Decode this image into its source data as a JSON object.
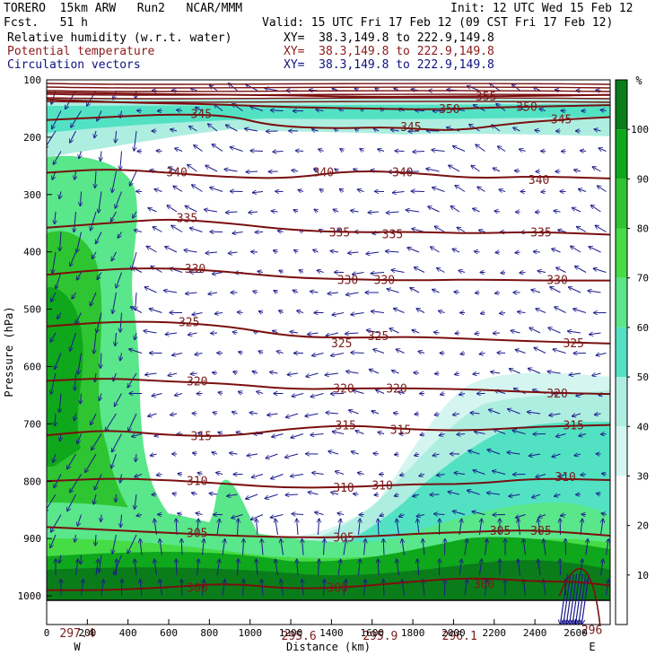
{
  "header": {
    "model": "TORERO  15km ARW   Run2   NCAR/MMM",
    "init": "Init: 12 UTC Wed 15 Feb 12",
    "fcst": "Fcst.   51 h",
    "valid": "Valid: 15 UTC Fri 17 Feb 12 (09 CST Fri 17 Feb 12)",
    "fields": [
      {
        "name": "Relative humidity (w.r.t. water)",
        "xy": "XY=  38.3,149.8 to 222.9,149.8"
      },
      {
        "name": "Potential temperature",
        "xy": "XY=  38.3,149.8 to 222.9,149.8"
      },
      {
        "name": "Circulation vectors",
        "xy": "XY=  38.3,149.8 to 222.9,149.8"
      }
    ]
  },
  "colors": {
    "rh_scale": [
      "#ffffff",
      "#ffffff",
      "#ffffff",
      "#d4f5f0",
      "#aeeee0",
      "#52e2c3",
      "#5ae68a",
      "#46dc46",
      "#2fc431",
      "#0fa71c",
      "#0a7d1a"
    ],
    "theta": "#7a0f0f",
    "vectors": "#1a1a8c"
  },
  "chart_data": {
    "type": "cross-section",
    "title": "Relative humidity (w.r.t. water) / Potential temperature / Circulation vectors",
    "xlabel": "Distance (km)",
    "ylabel": "Pressure (hPa)",
    "xlim": [
      0,
      2770
    ],
    "ylim": [
      1050,
      100
    ],
    "x_ticks": [
      0,
      200,
      400,
      600,
      800,
      1000,
      1200,
      1400,
      1600,
      1800,
      2000,
      2200,
      2400,
      2600
    ],
    "y_ticks": [
      100,
      200,
      300,
      400,
      500,
      600,
      700,
      800,
      900,
      1000
    ],
    "x_ends": [
      "W",
      "E"
    ],
    "colorbar": {
      "unit": "%",
      "ticks": [
        10,
        20,
        30,
        40,
        50,
        60,
        70,
        80,
        90,
        100
      ]
    },
    "theta_labels": [
      {
        "t": "355",
        "x": 2160,
        "p": 130
      },
      {
        "t": "350",
        "x": 1980,
        "p": 152
      },
      {
        "t": "350",
        "x": 2360,
        "p": 148
      },
      {
        "t": "345",
        "x": 760,
        "p": 160
      },
      {
        "t": "345",
        "x": 1790,
        "p": 183
      },
      {
        "t": "345",
        "x": 2530,
        "p": 170
      },
      {
        "t": "340",
        "x": 640,
        "p": 262
      },
      {
        "t": "340",
        "x": 1360,
        "p": 262
      },
      {
        "t": "340",
        "x": 1750,
        "p": 262
      },
      {
        "t": "340",
        "x": 2420,
        "p": 275
      },
      {
        "t": "335",
        "x": 690,
        "p": 342
      },
      {
        "t": "335",
        "x": 1440,
        "p": 367
      },
      {
        "t": "335",
        "x": 1700,
        "p": 370
      },
      {
        "t": "335",
        "x": 2430,
        "p": 367
      },
      {
        "t": "330",
        "x": 730,
        "p": 430
      },
      {
        "t": "330",
        "x": 1480,
        "p": 450
      },
      {
        "t": "330",
        "x": 1660,
        "p": 450
      },
      {
        "t": "330",
        "x": 2510,
        "p": 450
      },
      {
        "t": "325",
        "x": 700,
        "p": 523
      },
      {
        "t": "325",
        "x": 1450,
        "p": 560
      },
      {
        "t": "325",
        "x": 1630,
        "p": 548
      },
      {
        "t": "325",
        "x": 2590,
        "p": 560
      },
      {
        "t": "320",
        "x": 740,
        "p": 627
      },
      {
        "t": "320",
        "x": 1460,
        "p": 639
      },
      {
        "t": "320",
        "x": 1720,
        "p": 639
      },
      {
        "t": "320",
        "x": 2510,
        "p": 648
      },
      {
        "t": "315",
        "x": 760,
        "p": 722
      },
      {
        "t": "315",
        "x": 1470,
        "p": 703
      },
      {
        "t": "315",
        "x": 1740,
        "p": 711
      },
      {
        "t": "315",
        "x": 2590,
        "p": 703
      },
      {
        "t": "310",
        "x": 740,
        "p": 800
      },
      {
        "t": "310",
        "x": 1460,
        "p": 812
      },
      {
        "t": "310",
        "x": 1650,
        "p": 808
      },
      {
        "t": "310",
        "x": 2550,
        "p": 793
      },
      {
        "t": "305",
        "x": 740,
        "p": 891
      },
      {
        "t": "305",
        "x": 1460,
        "p": 899
      },
      {
        "t": "305",
        "x": 2230,
        "p": 887
      },
      {
        "t": "305",
        "x": 2430,
        "p": 887
      },
      {
        "t": "300",
        "x": 740,
        "p": 987
      },
      {
        "t": "300",
        "x": 1430,
        "p": 987
      },
      {
        "t": "300",
        "x": 2150,
        "p": 980
      },
      {
        "t": "297.4",
        "x": 150,
        "p": 1066
      },
      {
        "t": "295.6",
        "x": 1240,
        "p": 1070
      },
      {
        "t": "295.9",
        "x": 1640,
        "p": 1070
      },
      {
        "t": "296.1",
        "x": 2030,
        "p": 1070
      },
      {
        "t": "296",
        "x": 2680,
        "p": 1060
      }
    ],
    "theta_levels": [
      {
        "t": 355,
        "pts": [
          [
            0,
            122
          ],
          [
            400,
            124
          ],
          [
            800,
            126
          ],
          [
            1200,
            127
          ],
          [
            1600,
            130
          ],
          [
            2000,
            129
          ],
          [
            2400,
            128
          ],
          [
            2770,
            126
          ]
        ]
      },
      {
        "t": 350,
        "pts": [
          [
            0,
            134
          ],
          [
            400,
            140
          ],
          [
            800,
            142
          ],
          [
            1200,
            148
          ],
          [
            1600,
            150
          ],
          [
            1900,
            152
          ],
          [
            2200,
            148
          ],
          [
            2500,
            146
          ],
          [
            2770,
            144
          ]
        ]
      },
      {
        "t": 345,
        "pts": [
          [
            0,
            170
          ],
          [
            300,
            165
          ],
          [
            600,
            160
          ],
          [
            900,
            162
          ],
          [
            1100,
            180
          ],
          [
            1400,
            185
          ],
          [
            1700,
            182
          ],
          [
            2000,
            190
          ],
          [
            2300,
            175
          ],
          [
            2600,
            168
          ],
          [
            2770,
            165
          ]
        ]
      },
      {
        "t": 340,
        "pts": [
          [
            0,
            262
          ],
          [
            300,
            255
          ],
          [
            600,
            262
          ],
          [
            900,
            270
          ],
          [
            1200,
            272
          ],
          [
            1500,
            258
          ],
          [
            1800,
            262
          ],
          [
            2100,
            272
          ],
          [
            2400,
            268
          ],
          [
            2770,
            272
          ]
        ]
      },
      {
        "t": 335,
        "pts": [
          [
            0,
            358
          ],
          [
            300,
            350
          ],
          [
            600,
            342
          ],
          [
            900,
            350
          ],
          [
            1200,
            362
          ],
          [
            1500,
            366
          ],
          [
            1800,
            365
          ],
          [
            2100,
            368
          ],
          [
            2400,
            365
          ],
          [
            2770,
            370
          ]
        ]
      },
      {
        "t": 330,
        "pts": [
          [
            0,
            440
          ],
          [
            300,
            430
          ],
          [
            600,
            428
          ],
          [
            900,
            435
          ],
          [
            1200,
            445
          ],
          [
            1500,
            448
          ],
          [
            1800,
            450
          ],
          [
            2100,
            448
          ],
          [
            2400,
            450
          ],
          [
            2770,
            450
          ]
        ]
      },
      {
        "t": 325,
        "pts": [
          [
            0,
            530
          ],
          [
            300,
            522
          ],
          [
            600,
            522
          ],
          [
            900,
            530
          ],
          [
            1200,
            548
          ],
          [
            1500,
            550
          ],
          [
            1800,
            548
          ],
          [
            2100,
            552
          ],
          [
            2400,
            556
          ],
          [
            2770,
            560
          ]
        ]
      },
      {
        "t": 320,
        "pts": [
          [
            0,
            625
          ],
          [
            300,
            620
          ],
          [
            600,
            626
          ],
          [
            900,
            630
          ],
          [
            1200,
            640
          ],
          [
            1500,
            638
          ],
          [
            1800,
            638
          ],
          [
            2100,
            640
          ],
          [
            2400,
            645
          ],
          [
            2770,
            648
          ]
        ]
      },
      {
        "t": 315,
        "pts": [
          [
            0,
            720
          ],
          [
            300,
            710
          ],
          [
            600,
            720
          ],
          [
            900,
            722
          ],
          [
            1200,
            708
          ],
          [
            1500,
            702
          ],
          [
            1800,
            710
          ],
          [
            2100,
            712
          ],
          [
            2400,
            705
          ],
          [
            2770,
            702
          ]
        ]
      },
      {
        "t": 310,
        "pts": [
          [
            0,
            800
          ],
          [
            300,
            795
          ],
          [
            600,
            798
          ],
          [
            900,
            805
          ],
          [
            1200,
            812
          ],
          [
            1500,
            810
          ],
          [
            1800,
            805
          ],
          [
            2100,
            805
          ],
          [
            2400,
            795
          ],
          [
            2770,
            798
          ]
        ]
      },
      {
        "t": 305,
        "pts": [
          [
            0,
            880
          ],
          [
            300,
            885
          ],
          [
            600,
            890
          ],
          [
            900,
            895
          ],
          [
            1200,
            898
          ],
          [
            1500,
            898
          ],
          [
            1800,
            892
          ],
          [
            2100,
            888
          ],
          [
            2400,
            885
          ],
          [
            2770,
            895
          ]
        ]
      },
      {
        "t": 300,
        "pts": [
          [
            0,
            990
          ],
          [
            300,
            990
          ],
          [
            600,
            985
          ],
          [
            900,
            978
          ],
          [
            1200,
            988
          ],
          [
            1500,
            985
          ],
          [
            1800,
            975
          ],
          [
            2100,
            968
          ],
          [
            2400,
            975
          ],
          [
            2600,
            975
          ],
          [
            2770,
            982
          ]
        ]
      }
    ]
  }
}
